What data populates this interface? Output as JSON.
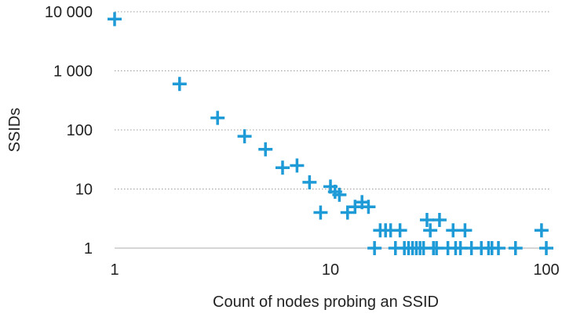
{
  "chart_data": {
    "type": "scatter",
    "title": "",
    "xlabel": "Count of nodes probing an SSID",
    "ylabel": "SSIDs",
    "x_scale": "log",
    "y_scale": "log",
    "xlim": [
      1,
      100
    ],
    "ylim": [
      1,
      10000
    ],
    "x_ticks": [
      1,
      10,
      100
    ],
    "x_tick_labels": [
      "1",
      "10",
      "100"
    ],
    "y_ticks": [
      1,
      10,
      100,
      1000,
      10000
    ],
    "y_tick_labels": [
      "1",
      "10",
      "100",
      "1 000",
      "10 000"
    ],
    "grid": "horizontal dotted",
    "marker": "plus",
    "color": "#1e9bd7",
    "points": [
      [
        1,
        7500
      ],
      [
        2,
        600
      ],
      [
        3,
        160
      ],
      [
        4,
        78
      ],
      [
        5,
        47
      ],
      [
        6,
        23
      ],
      [
        7,
        25
      ],
      [
        8,
        13
      ],
      [
        9,
        4
      ],
      [
        10,
        11
      ],
      [
        10.5,
        9
      ],
      [
        11,
        8
      ],
      [
        12,
        4
      ],
      [
        13,
        5
      ],
      [
        14,
        6
      ],
      [
        15,
        5
      ],
      [
        16,
        1
      ],
      [
        17,
        2
      ],
      [
        18,
        2
      ],
      [
        19,
        2
      ],
      [
        20,
        1
      ],
      [
        21,
        2
      ],
      [
        22,
        1
      ],
      [
        23,
        1
      ],
      [
        24,
        1
      ],
      [
        25,
        1
      ],
      [
        26,
        1
      ],
      [
        27,
        1
      ],
      [
        28,
        3
      ],
      [
        29,
        2
      ],
      [
        30,
        1
      ],
      [
        31,
        1
      ],
      [
        32,
        3
      ],
      [
        35,
        1
      ],
      [
        37,
        2
      ],
      [
        38,
        1
      ],
      [
        40,
        1
      ],
      [
        42,
        2
      ],
      [
        45,
        1
      ],
      [
        50,
        1
      ],
      [
        54,
        1
      ],
      [
        56,
        1
      ],
      [
        60,
        1
      ],
      [
        72,
        1
      ],
      [
        95,
        2
      ],
      [
        100,
        1
      ]
    ]
  }
}
